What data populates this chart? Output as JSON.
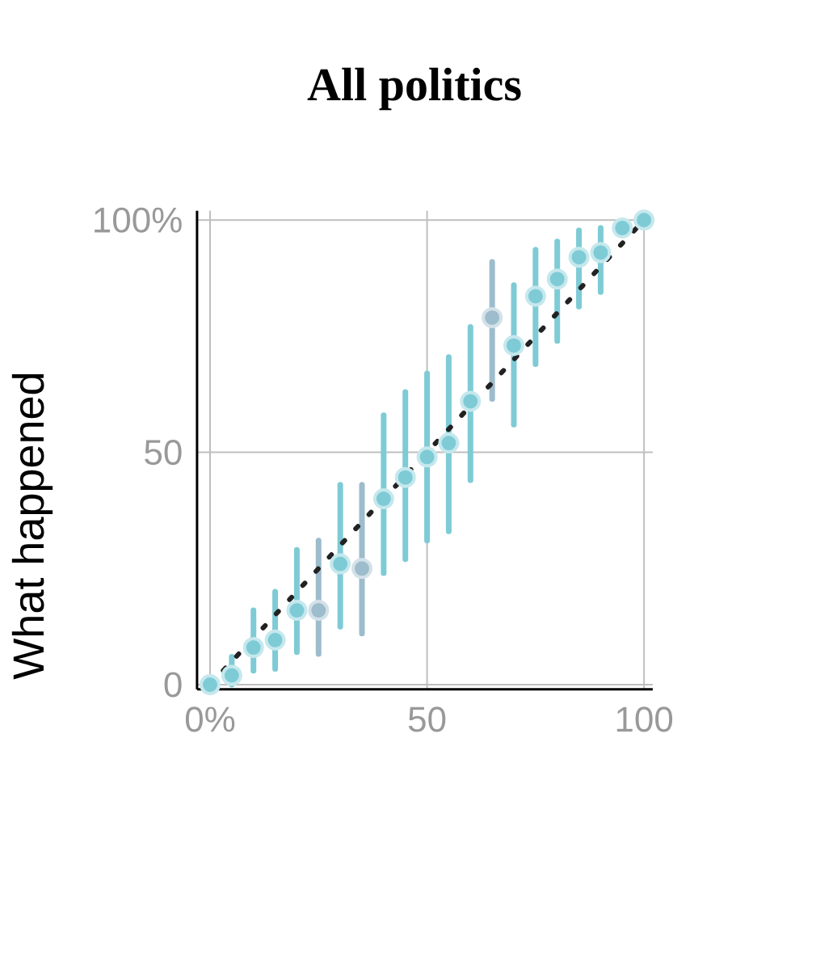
{
  "chart_data": {
    "type": "scatter",
    "title": "All politics",
    "ylabel": "What happened",
    "xlim": [
      -3,
      102
    ],
    "ylim": [
      -1,
      102
    ],
    "xticks": [
      {
        "value": 0,
        "label": "0%"
      },
      50,
      100
    ],
    "yticks": [
      0,
      50,
      {
        "value": 100,
        "label": "100%"
      }
    ],
    "grid": true,
    "series": [
      {
        "marker": "circle",
        "x": [
          0,
          5,
          10,
          15,
          20,
          25,
          30,
          35,
          40,
          45,
          50,
          55,
          60,
          65,
          70,
          75,
          80,
          85,
          90,
          95,
          100
        ],
        "values": [
          0,
          2,
          8,
          9.6,
          16,
          16,
          26,
          25,
          40,
          44.6,
          49,
          52,
          61,
          79,
          73,
          83.6,
          87.3,
          92,
          93,
          98.3,
          100
        ],
        "errors": [
          null,
          [
            0,
            6
          ],
          [
            3,
            16
          ],
          [
            3.4,
            20
          ],
          [
            7,
            29
          ],
          [
            6.6,
            31
          ],
          [
            12.5,
            43
          ],
          [
            11,
            43
          ],
          [
            24,
            58
          ],
          [
            27,
            63
          ],
          [
            31,
            67
          ],
          [
            33,
            70.5
          ],
          [
            44,
            77
          ],
          [
            61.5,
            91
          ],
          [
            56,
            86
          ],
          [
            69,
            93.6
          ],
          [
            74,
            95.4
          ],
          [
            81.4,
            97.8
          ],
          [
            84.5,
            98.3
          ],
          null,
          null
        ],
        "colors": [
          "#7ecbd6",
          "#7ecbd6",
          "#7ecbd6",
          "#7ecbd6",
          "#7ecbd6",
          "#9dbccc",
          "#7ecbd6",
          "#9dbccc",
          "#7ecbd6",
          "#7ecbd6",
          "#7ecbd6",
          "#7ecbd6",
          "#7ecbd6",
          "#9dbccc",
          "#7ecbd6",
          "#7ecbd6",
          "#7ecbd6",
          "#7ecbd6",
          "#7ecbd6",
          "#7ecbd6",
          "#7ecbd6"
        ]
      },
      {
        "type": "line",
        "x": [
          0,
          100
        ],
        "values": [
          0,
          100
        ],
        "color": "#222222",
        "line_style": "dotted"
      }
    ]
  }
}
